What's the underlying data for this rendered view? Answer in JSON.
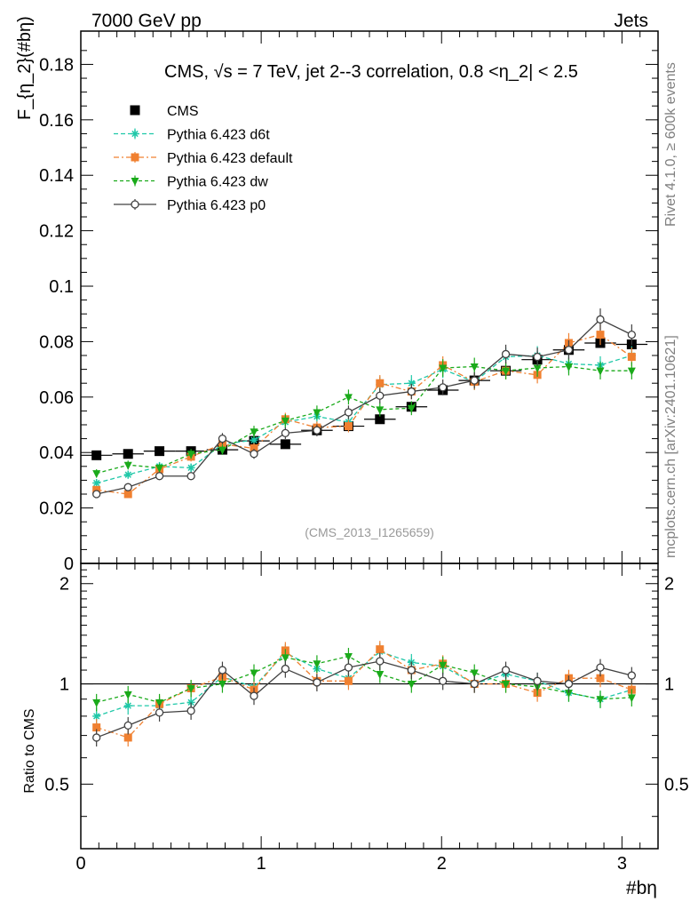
{
  "header": {
    "left": "7000 GeV pp",
    "right": "Jets",
    "side_top": "Rivet 4.1.0, ≥ 600k events",
    "side_bottom": "mcplots.cern.ch [arXiv:2401.10621]"
  },
  "colors": {
    "cms": "#000000",
    "d6t": "#1fc8a8",
    "default": "#f08030",
    "dw": "#1aaa1a",
    "p0": "#404040"
  },
  "chart_data": {
    "type": "line",
    "title": "CMS, √s = 7 TeV, jet 2--3 correlation, 0.8 <η_2| < 2.5",
    "watermark": "(CMS_2013_I1265659)",
    "ylabel": "F_{η_2}(#bη)",
    "ratio_ylabel": "Ratio to CMS",
    "xlabel": "#bη",
    "xlim": [
      0,
      3.2
    ],
    "ylim": [
      0,
      0.192
    ],
    "ratio_ylim": [
      0.32,
      2.3
    ],
    "x_ticks": [
      "0",
      "1",
      "2",
      "3"
    ],
    "y_ticks": [
      "0",
      "0.02",
      "0.04",
      "0.06",
      "0.08",
      "0.1",
      "0.12",
      "0.14",
      "0.16",
      "0.18"
    ],
    "ratio_ticks": [
      "0.5",
      "1",
      "2"
    ],
    "x": [
      0.087,
      0.262,
      0.436,
      0.611,
      0.785,
      0.96,
      1.134,
      1.309,
      1.484,
      1.658,
      1.833,
      2.007,
      2.182,
      2.356,
      2.531,
      2.705,
      2.88,
      3.054
    ],
    "series": [
      {
        "name": "CMS",
        "key": "cms",
        "marker": "square",
        "values": [
          0.039,
          0.0395,
          0.0405,
          0.0405,
          0.041,
          0.0442,
          0.043,
          0.048,
          0.0495,
          0.052,
          0.0565,
          0.0625,
          0.066,
          0.0695,
          0.0735,
          0.077,
          0.0795,
          0.079
        ]
      },
      {
        "name": "Pythia 6.423 d6t",
        "key": "d6t",
        "marker": "star",
        "values": [
          0.029,
          0.032,
          0.035,
          0.0345,
          0.043,
          0.0445,
          0.051,
          0.053,
          0.051,
          0.0645,
          0.065,
          0.07,
          0.0655,
          0.0745,
          0.075,
          0.072,
          0.0715,
          0.075
        ]
      },
      {
        "name": "Pythia 6.423 default",
        "key": "default",
        "marker": "square",
        "values": [
          0.0265,
          0.025,
          0.034,
          0.0385,
          0.043,
          0.0415,
          0.052,
          0.049,
          0.0495,
          0.065,
          0.062,
          0.0715,
          0.0655,
          0.0695,
          0.068,
          0.0795,
          0.0825,
          0.0745
        ]
      },
      {
        "name": "Pythia 6.423 dw",
        "key": "dw",
        "marker": "triangle",
        "values": [
          0.0325,
          0.0355,
          0.0345,
          0.0395,
          0.041,
          0.0475,
          0.0515,
          0.0545,
          0.06,
          0.0555,
          0.056,
          0.0705,
          0.071,
          0.0695,
          0.0705,
          0.071,
          0.0695,
          0.0695
        ]
      },
      {
        "name": "Pythia 6.423 p0",
        "key": "p0",
        "marker": "circle",
        "values": [
          0.025,
          0.0275,
          0.0315,
          0.0315,
          0.045,
          0.0395,
          0.047,
          0.048,
          0.0545,
          0.0605,
          0.062,
          0.0635,
          0.066,
          0.0755,
          0.0745,
          0.077,
          0.088,
          0.0825
        ]
      }
    ],
    "ratio_series": [
      {
        "key": "d6t",
        "marker": "star",
        "values": [
          0.8,
          0.86,
          0.86,
          0.88,
          1.05,
          0.98,
          1.24,
          1.11,
          1.04,
          1.25,
          1.16,
          1.13,
          1.0,
          1.07,
          1.02,
          0.94,
          0.9,
          0.96
        ]
      },
      {
        "key": "default",
        "marker": "square",
        "values": [
          0.74,
          0.69,
          0.87,
          0.97,
          1.05,
          0.96,
          1.26,
          1.02,
          1.02,
          1.27,
          1.1,
          1.15,
          1.0,
          1.0,
          0.94,
          1.04,
          1.04,
          0.96
        ]
      },
      {
        "key": "dw",
        "marker": "triangle",
        "values": [
          0.88,
          0.93,
          0.88,
          0.97,
          1.0,
          1.08,
          1.2,
          1.15,
          1.21,
          1.07,
          1.0,
          1.14,
          1.08,
          1.0,
          0.98,
          0.94,
          0.9,
          0.91
        ]
      },
      {
        "key": "p0",
        "marker": "circle",
        "values": [
          0.69,
          0.75,
          0.82,
          0.83,
          1.1,
          0.92,
          1.11,
          1.01,
          1.12,
          1.17,
          1.1,
          1.02,
          1.0,
          1.1,
          1.02,
          1.0,
          1.12,
          1.06
        ]
      }
    ],
    "legend": [
      "CMS",
      "Pythia 6.423 d6t",
      "Pythia 6.423 default",
      "Pythia 6.423 dw",
      "Pythia 6.423 p0"
    ]
  }
}
